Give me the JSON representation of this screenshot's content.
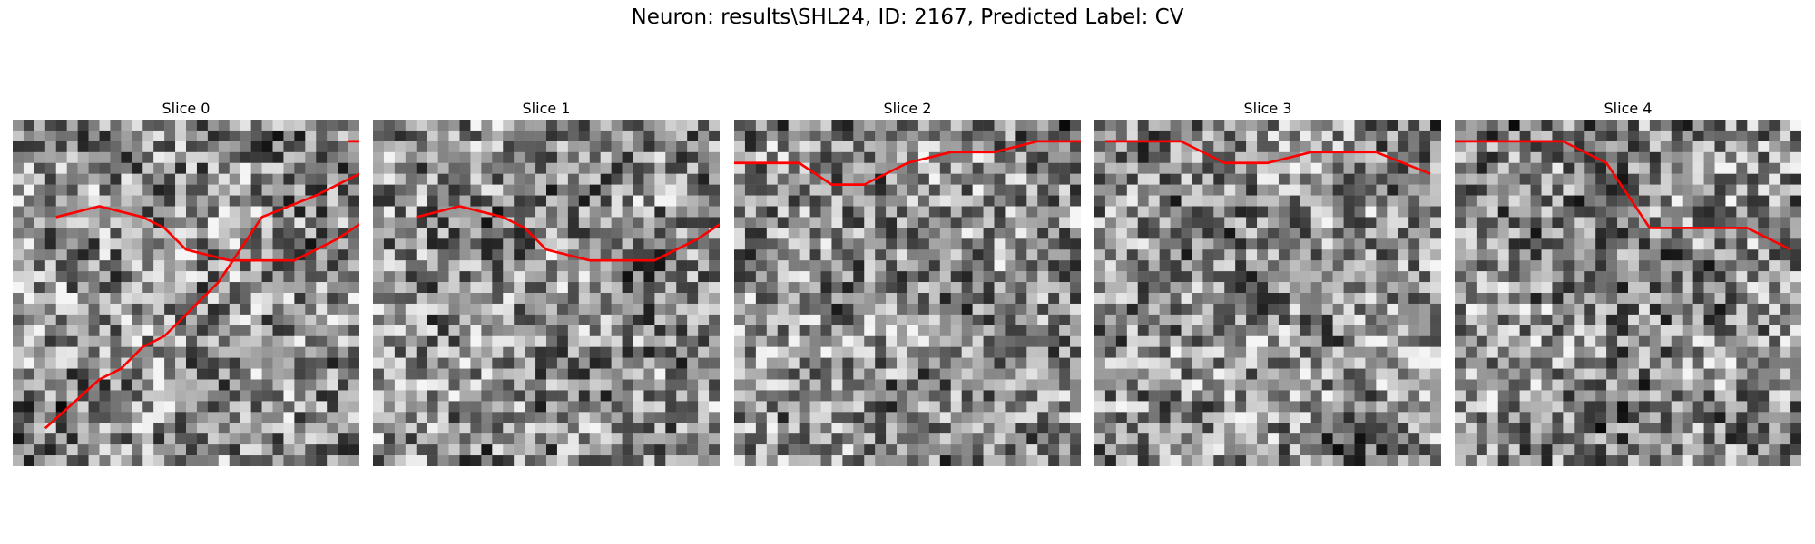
{
  "figure": {
    "title": "Neuron: results\\SHL24, ID: 2167, Predicted Label: CV",
    "contour_color": "#ff0000",
    "colormap": "gray",
    "grid_size": 32
  },
  "slices": [
    {
      "title": "Slice 0",
      "seed": 11,
      "contours": [
        [
          [
            3,
            28.5
          ],
          [
            8,
            24
          ],
          [
            10,
            23
          ],
          [
            12,
            21
          ],
          [
            14,
            20
          ],
          [
            16,
            18
          ],
          [
            19,
            15
          ],
          [
            21,
            12
          ],
          [
            23,
            9
          ],
          [
            28,
            7
          ],
          [
            32,
            5
          ]
        ],
        [
          [
            31,
            2
          ],
          [
            33,
            2
          ],
          [
            34,
            4
          ]
        ],
        [
          [
            4,
            9
          ],
          [
            8,
            8
          ],
          [
            12,
            9
          ],
          [
            14,
            10
          ],
          [
            16,
            12
          ],
          [
            20,
            13
          ],
          [
            26,
            13
          ],
          [
            30,
            11
          ],
          [
            33,
            9
          ]
        ]
      ]
    },
    {
      "title": "Slice 1",
      "seed": 23,
      "contours": [
        [
          [
            4,
            9
          ],
          [
            8,
            8
          ],
          [
            12,
            9
          ],
          [
            14,
            10
          ],
          [
            16,
            12
          ],
          [
            20,
            13
          ],
          [
            26,
            13
          ],
          [
            30,
            11
          ],
          [
            33,
            9
          ]
        ]
      ]
    },
    {
      "title": "Slice 2",
      "seed": 37,
      "contours": [
        [
          [
            0,
            4
          ],
          [
            6,
            4
          ],
          [
            9,
            6
          ],
          [
            12,
            6
          ],
          [
            16,
            4
          ],
          [
            20,
            3
          ],
          [
            24,
            3
          ],
          [
            28,
            2
          ],
          [
            32,
            2
          ]
        ]
      ]
    },
    {
      "title": "Slice 3",
      "seed": 51,
      "contours": [
        [
          [
            1,
            2
          ],
          [
            8,
            2
          ],
          [
            12,
            4
          ],
          [
            16,
            4
          ],
          [
            20,
            3
          ],
          [
            26,
            3
          ],
          [
            31,
            5
          ]
        ]
      ]
    },
    {
      "title": "Slice 4",
      "seed": 67,
      "contours": [
        [
          [
            0,
            2
          ],
          [
            10,
            2
          ],
          [
            14,
            4
          ],
          [
            16,
            7
          ],
          [
            18,
            10
          ],
          [
            22,
            10
          ],
          [
            27,
            10
          ],
          [
            31,
            12
          ]
        ]
      ]
    }
  ]
}
